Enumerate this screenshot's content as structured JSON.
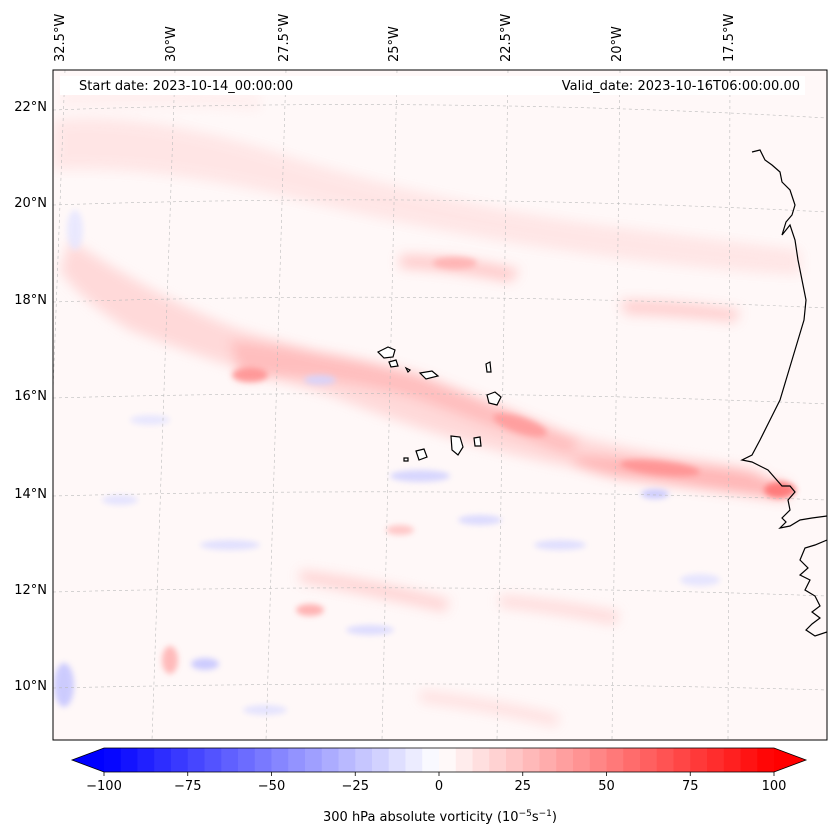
{
  "header": {
    "start_date": "Start date: 2023-10-14_00:00:00",
    "valid_date": "Valid_date: 2023-10-16T06:00:00.00"
  },
  "map": {
    "lon_labels": [
      "32.5°W",
      "30°W",
      "27.5°W",
      "25°W",
      "22.5°W",
      "20°W",
      "17.5°W"
    ],
    "lat_labels": [
      "22°N",
      "20°N",
      "18°N",
      "16°N",
      "14°N",
      "12°N",
      "10°N"
    ],
    "field": "300 hPa absolute vorticity",
    "colors": {
      "negative": "#0000ff",
      "neutral": "#ffffff",
      "positive": "#ff0000",
      "coastline": "#000000"
    }
  },
  "colorbar": {
    "ticks": [
      "−100",
      "−75",
      "−50",
      "−25",
      "0",
      "25",
      "50",
      "75",
      "100"
    ],
    "tick_values": [
      -100,
      -75,
      -50,
      -25,
      0,
      25,
      50,
      75,
      100
    ],
    "range": [
      -100,
      100
    ],
    "label": "300 hPa absolute vorticity (10",
    "label_exp1": "−5",
    "label_mid": "s",
    "label_exp2": "−1",
    "label_end": ")"
  }
}
